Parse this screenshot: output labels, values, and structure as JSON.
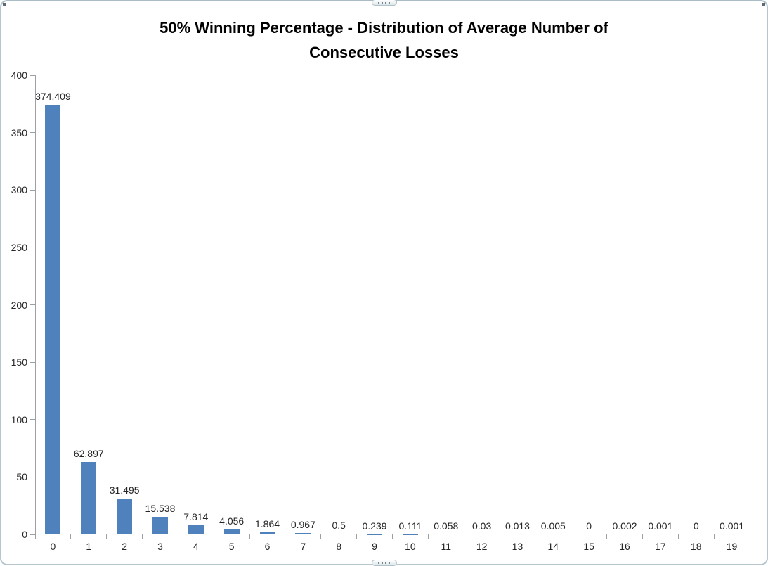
{
  "chart_data": {
    "type": "bar",
    "title": "50% Winning Percentage - Distribution of Average Number of Consecutive Losses",
    "title_lines": [
      "50% Winning Percentage - Distribution of Average Number of",
      "Consecutive Losses"
    ],
    "categories": [
      "0",
      "1",
      "2",
      "3",
      "4",
      "5",
      "6",
      "7",
      "8",
      "9",
      "10",
      "11",
      "12",
      "13",
      "14",
      "15",
      "16",
      "17",
      "18",
      "19"
    ],
    "values": [
      374.409,
      62.897,
      31.495,
      15.538,
      7.814,
      4.056,
      1.864,
      0.967,
      0.5,
      0.239,
      0.111,
      0.058,
      0.03,
      0.013,
      0.005,
      0,
      0.002,
      0.001,
      0,
      0.001
    ],
    "value_labels": [
      "374.409",
      "62.897",
      "31.495",
      "15.538",
      "7.814",
      "4.056",
      "1.864",
      "0.967",
      "0.5",
      "0.239",
      "0.111",
      "0.058",
      "0.03",
      "0.013",
      "0.005",
      "0",
      "0.002",
      "0.001",
      "0",
      "0.001"
    ],
    "y_ticks": [
      "400",
      "350",
      "300",
      "250",
      "200",
      "150",
      "100",
      "50",
      "0"
    ],
    "ylim": [
      0,
      400
    ],
    "xlabel": "",
    "ylabel": "",
    "grid": false,
    "legend": false,
    "bar_color": "#4F81BD",
    "axis_color": "#9aa0a4",
    "label_color": "#262626",
    "series_name": "Average Number of Consecutive Losses"
  }
}
